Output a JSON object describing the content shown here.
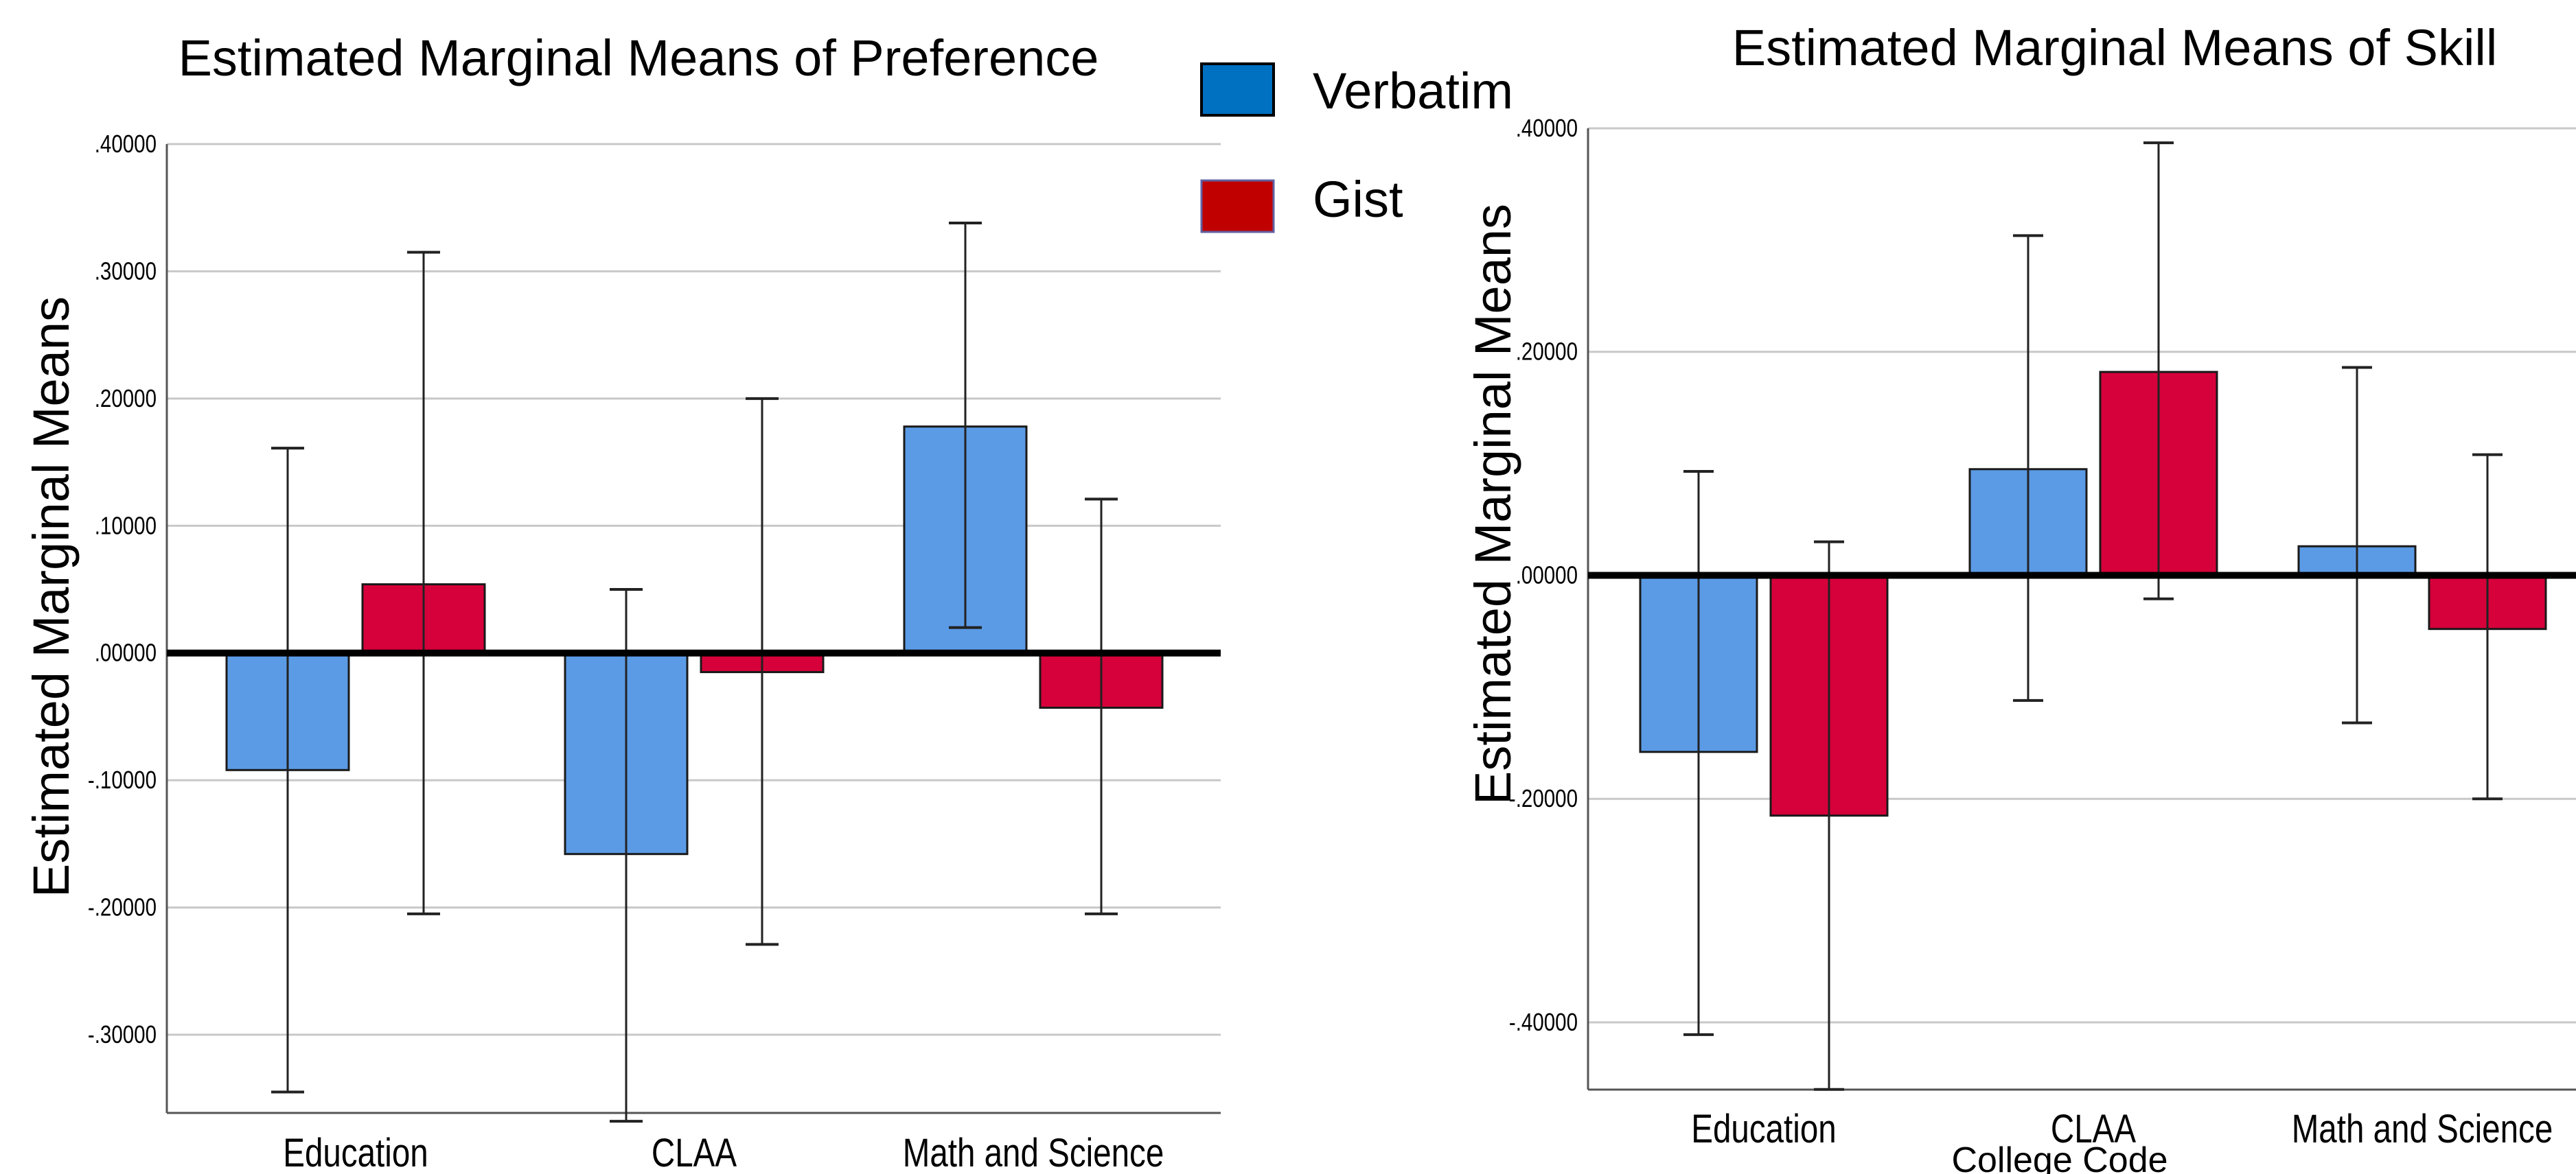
{
  "legend": {
    "items": [
      {
        "label": "Verbatim",
        "color": "#0070C0"
      },
      {
        "label": "Gist",
        "color": "#C00000"
      }
    ]
  },
  "colors": {
    "verbatim_bar": "#5B9BE6",
    "gist_bar": "#D6003A",
    "gridline": "#C8C8C8",
    "axis": "#000000"
  },
  "chart_data": [
    {
      "type": "bar",
      "title": "Estimated Marginal Means of Preference",
      "xlabel": "",
      "ylabel": "Estimated Marginal Means",
      "categories": [
        "Education",
        "CLAA",
        "Math and Science"
      ],
      "ylim": [
        -0.365,
        0.4
      ],
      "yticks": [
        0.4,
        0.3,
        0.2,
        0.1,
        0.0,
        -0.1,
        -0.2,
        -0.3
      ],
      "ytick_labels": [
        ".40000",
        ".30000",
        ".20000",
        ".10000",
        ".00000",
        "-.10000",
        "-.20000",
        "-.30000"
      ],
      "grid": true,
      "series": [
        {
          "name": "Verbatim",
          "values": [
            -0.092,
            -0.158,
            0.178
          ],
          "err_low": [
            -0.345,
            -0.368,
            0.02
          ],
          "err_high": [
            0.161,
            0.05,
            0.338
          ]
        },
        {
          "name": "Gist",
          "values": [
            0.054,
            -0.015,
            -0.043
          ],
          "err_low": [
            -0.205,
            -0.229,
            -0.205
          ],
          "err_high": [
            0.315,
            0.2,
            0.121
          ]
        }
      ]
    },
    {
      "type": "bar",
      "title": "Estimated Marginal Means of Skill",
      "xlabel": "College Code",
      "ylabel": "Estimated Marginal Means",
      "categories": [
        "Education",
        "CLAA",
        "Math and Science"
      ],
      "ylim": [
        -0.46,
        0.4
      ],
      "yticks": [
        0.4,
        0.2,
        0.0,
        -0.2,
        -0.4
      ],
      "ytick_labels": [
        ".40000",
        ".20000",
        ".00000",
        "-.20000",
        "-.40000"
      ],
      "grid": true,
      "series": [
        {
          "name": "Verbatim",
          "values": [
            -0.158,
            0.095,
            0.026
          ],
          "err_low": [
            -0.411,
            -0.112,
            -0.132
          ],
          "err_high": [
            0.093,
            0.304,
            0.186
          ]
        },
        {
          "name": "Gist",
          "values": [
            -0.215,
            0.182,
            -0.048
          ],
          "err_low": [
            -0.46,
            -0.021,
            -0.2
          ],
          "err_high": [
            0.03,
            0.387,
            0.108
          ]
        }
      ]
    }
  ]
}
